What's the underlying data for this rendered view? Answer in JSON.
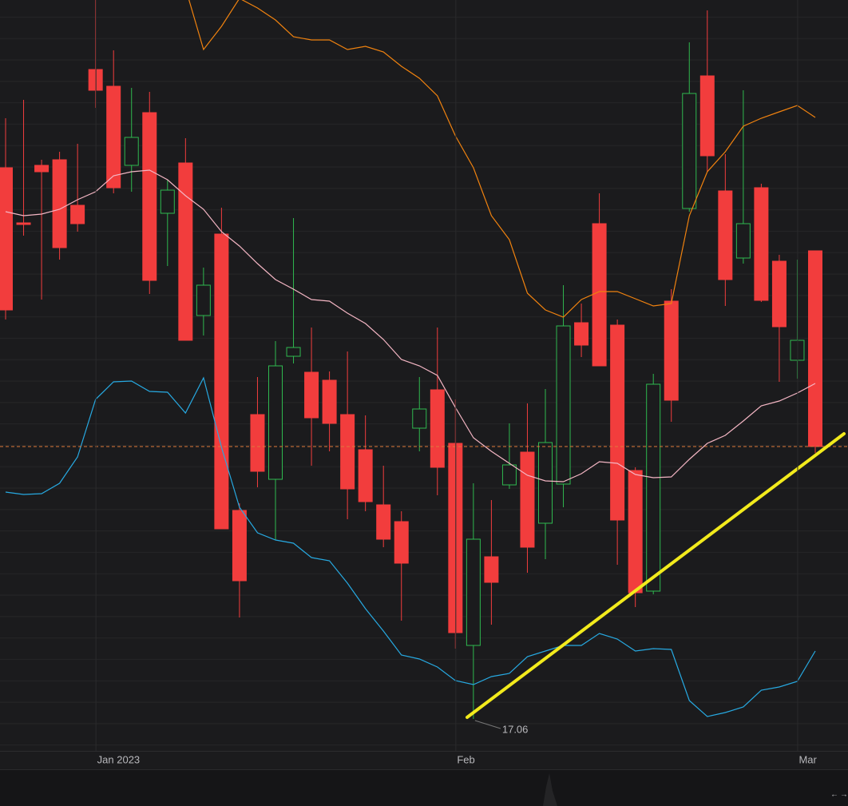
{
  "chart_data": {
    "type": "candlestick",
    "categories": [
      null,
      null,
      null,
      null,
      null,
      "Jan 2023",
      null,
      null,
      null,
      null,
      null,
      null,
      null,
      null,
      null,
      null,
      null,
      null,
      null,
      null,
      null,
      null,
      null,
      null,
      null,
      "Feb",
      null,
      null,
      null,
      null,
      null,
      null,
      null,
      null,
      null,
      null,
      null,
      null,
      null,
      null,
      null,
      null,
      null,
      null,
      "Mar",
      null
    ],
    "open": [
      23.96,
      23.27,
      23.99,
      24.06,
      23.49,
      25.19,
      24.98,
      23.99,
      24.65,
      23.39,
      24.02,
      22.11,
      23.13,
      19.67,
      20.87,
      20.06,
      21.6,
      21.4,
      21.3,
      20.87,
      20.43,
      19.74,
      19.53,
      20.7,
      21.18,
      20.51,
      17.98,
      19.09,
      19.99,
      20.4,
      19.51,
      20.0,
      22.02,
      23.26,
      21.99,
      20.17,
      18.66,
      22.29,
      23.45,
      25.11,
      23.67,
      22.83,
      23.71,
      22.79,
      21.55,
      22.92
    ],
    "high": [
      24.58,
      24.81,
      24.06,
      24.16,
      24.26,
      26.06,
      25.43,
      24.96,
      24.91,
      23.81,
      24.33,
      22.71,
      23.46,
      19.76,
      21.34,
      21.79,
      23.33,
      21.96,
      21.41,
      21.66,
      20.86,
      20.23,
      19.66,
      21.34,
      21.96,
      21.06,
      20.01,
      19.8,
      20.76,
      21.01,
      21.19,
      22.49,
      22.26,
      23.64,
      22.06,
      20.21,
      21.38,
      22.44,
      25.53,
      25.93,
      24.13,
      24.93,
      23.76,
      22.87,
      22.81,
      22.92
    ],
    "low": [
      22.06,
      23.11,
      22.31,
      22.81,
      23.16,
      24.71,
      23.64,
      23.66,
      22.38,
      22.73,
      21.8,
      21.86,
      19.44,
      18.33,
      19.96,
      19.3,
      21.51,
      20.23,
      20.41,
      19.56,
      19.66,
      19.21,
      18.29,
      20.41,
      19.86,
      17.94,
      17.06,
      18.24,
      19.94,
      18.89,
      19.06,
      19.71,
      21.59,
      21.48,
      18.99,
      18.46,
      18.62,
      20.78,
      23.41,
      23.91,
      22.23,
      22.76,
      22.28,
      21.28,
      21.32,
      20.39
    ],
    "close": [
      22.18,
      23.25,
      23.91,
      22.96,
      23.26,
      24.93,
      23.71,
      24.34,
      22.55,
      23.68,
      21.8,
      22.49,
      19.44,
      18.79,
      20.16,
      21.48,
      21.71,
      20.83,
      20.76,
      19.94,
      19.78,
      19.31,
      19.01,
      20.94,
      20.21,
      18.14,
      19.31,
      18.77,
      20.24,
      19.21,
      20.52,
      21.98,
      21.74,
      21.48,
      19.55,
      18.64,
      21.25,
      21.05,
      24.89,
      24.11,
      22.56,
      23.26,
      22.3,
      21.97,
      21.8,
      20.47
    ],
    "up_color": "#2fb84f",
    "down_color": "#f23d3d",
    "lines": [
      {
        "color": "#f0820f",
        "values": [
          null,
          null,
          null,
          null,
          null,
          null,
          null,
          null,
          null,
          null,
          26.21,
          25.44,
          25.73,
          26.08,
          25.96,
          25.81,
          25.6,
          25.56,
          25.56,
          25.44,
          25.48,
          25.41,
          25.23,
          25.08,
          24.86,
          24.36,
          23.96,
          23.36,
          23.06,
          22.39,
          22.18,
          22.09,
          22.31,
          22.41,
          22.41,
          22.32,
          22.23,
          22.26,
          23.36,
          23.91,
          24.16,
          24.48,
          24.58,
          24.66,
          24.74,
          24.59
        ]
      },
      {
        "color": "#f4b6c4",
        "values": [
          23.41,
          23.36,
          23.38,
          23.44,
          23.56,
          23.66,
          23.86,
          23.91,
          23.93,
          23.81,
          23.61,
          23.44,
          23.16,
          22.98,
          22.76,
          22.56,
          22.44,
          22.31,
          22.29,
          22.14,
          22.01,
          21.81,
          21.56,
          21.48,
          21.36,
          20.96,
          20.58,
          20.41,
          20.26,
          20.11,
          20.04,
          20.03,
          20.13,
          20.28,
          20.26,
          20.12,
          20.08,
          20.09,
          20.31,
          20.51,
          20.61,
          20.79,
          20.98,
          21.04,
          21.14,
          21.26
        ]
      },
      {
        "color": "#27a9e1",
        "values": [
          19.9,
          19.87,
          19.88,
          20.01,
          20.34,
          21.06,
          21.28,
          21.29,
          21.16,
          21.15,
          20.89,
          21.33,
          20.46,
          19.71,
          19.39,
          19.3,
          19.26,
          19.08,
          19.04,
          18.76,
          18.44,
          18.16,
          17.86,
          17.81,
          17.71,
          17.54,
          17.49,
          17.59,
          17.63,
          17.84,
          17.91,
          17.98,
          17.98,
          18.13,
          18.06,
          17.91,
          17.94,
          17.93,
          17.29,
          17.09,
          17.14,
          17.21,
          17.42,
          17.46,
          17.53,
          17.91
        ]
      }
    ],
    "last_price_color": "#e0793a",
    "annotation": "17.06",
    "ylim": [
      16.66,
      26.06
    ]
  }
}
